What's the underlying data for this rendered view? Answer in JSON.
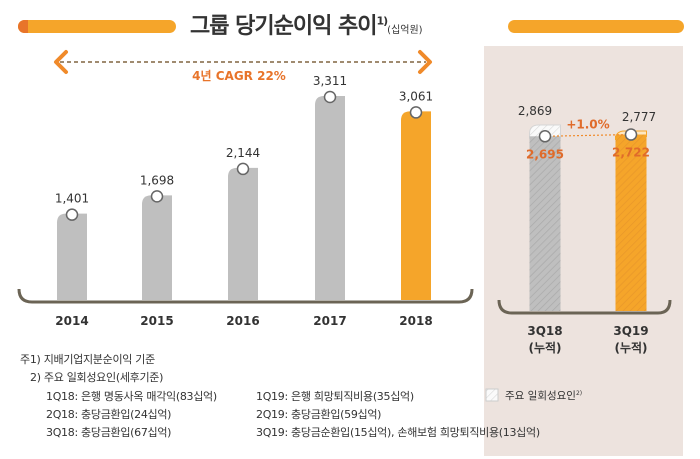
{
  "header": {
    "title": "그룹 당기순이익 추이",
    "title_footnote": "1)",
    "unit": "(십억원)"
  },
  "colors": {
    "accent": "#f5a52a",
    "accent_dark": "#e8742a",
    "gray_bar": "#bfbfbf",
    "text_orange": "#e06b2a",
    "panel_bg": "#ede3de",
    "bracket": "#6b6455"
  },
  "chart_data": [
    {
      "type": "bar",
      "title": "그룹 당기순이익 추이",
      "unit": "십억원",
      "categories": [
        "2014",
        "2015",
        "2016",
        "2017",
        "2018"
      ],
      "values": [
        1401,
        1698,
        2144,
        3311,
        3061
      ],
      "value_labels": [
        "1,401",
        "1,698",
        "2,144",
        "3,311",
        "3,061"
      ],
      "highlight": "2018",
      "ylim": [
        0,
        3400
      ],
      "grid": false,
      "annotation": "4년 CAGR 22%"
    },
    {
      "type": "bar",
      "categories": [
        "3Q18",
        "3Q19"
      ],
      "category_sublabels": [
        "(누적)",
        "(누적)"
      ],
      "values_total": [
        2869,
        2777
      ],
      "values_total_labels": [
        "2,869",
        "2,777"
      ],
      "values_excluding_one_off": [
        2695,
        2722
      ],
      "values_excluding_one_off_labels": [
        "2,695",
        "2,722"
      ],
      "highlight": "3Q19",
      "annotation": "+1.0%",
      "ylim": [
        0,
        3400
      ]
    }
  ],
  "legend": {
    "one_off_label": "주요 일회성요인",
    "one_off_footnote": "2)"
  },
  "notes": {
    "note1": "주1) 지배기업지분순이익 기준",
    "note2": "2) 주요 일회성요인(세후기준)",
    "items_2018": [
      "1Q18: 은행 명동사옥 매각익(83십억)",
      "2Q18: 충당금환입(24십억)",
      "3Q18: 충당금환입(67십억)"
    ],
    "items_2019": [
      "1Q19: 은행 희망퇴직비용(35십억)",
      "2Q19: 충당금환입(59십억)",
      "3Q19: 충당금순환입(15십억), 손해보험 희망퇴직비용(13십억)"
    ]
  }
}
